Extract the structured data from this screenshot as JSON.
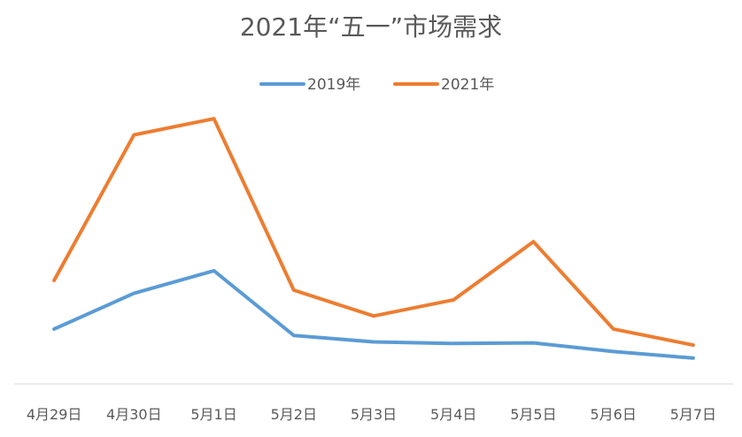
{
  "chart_data": {
    "type": "line",
    "title": "2021年“五一”市场需求",
    "xlabel": "",
    "ylabel": "",
    "categories": [
      "4月29日",
      "4月30日",
      "5月1日",
      "5月2日",
      "5月3日",
      "5月4日",
      "5月5日",
      "5月6日",
      "5月7日"
    ],
    "series": [
      {
        "name": "2019年",
        "color": "#5B9BD5",
        "values": [
          17,
          28,
          35,
          15,
          13,
          12.5,
          12.7,
          10,
          8
        ]
      },
      {
        "name": "2021年",
        "color": "#ED7D31",
        "values": [
          32,
          77,
          82,
          29,
          21,
          26,
          44,
          17,
          12
        ]
      }
    ],
    "ylim": [
      0,
      90
    ],
    "grid": false,
    "legend": "top-center",
    "y_axis_visible": false
  }
}
